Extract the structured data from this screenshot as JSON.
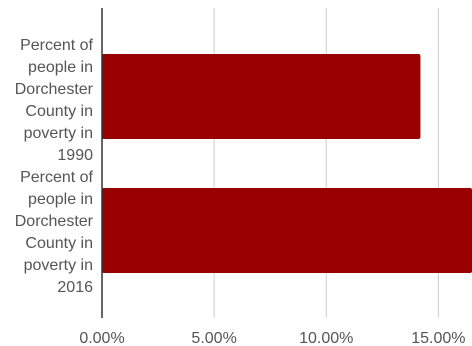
{
  "chart_data": {
    "type": "bar",
    "orientation": "horizontal",
    "categories": [
      "Percent of people in Dorchester County in poverty in 1990",
      "Percent of people in Dorchester County in poverty in 2016"
    ],
    "category_label_lines": [
      [
        "Percent of",
        "people in",
        "Dorchester",
        "County in",
        "poverty in",
        "1990"
      ],
      [
        "Percent of",
        "people in",
        "Dorchester",
        "County in",
        "poverty in",
        "2016"
      ]
    ],
    "values": [
      14.2,
      16.5
    ],
    "xlim": [
      0,
      16.5
    ],
    "x_ticks": [
      0,
      5,
      10,
      15
    ],
    "x_tick_labels": [
      "0.00%",
      "5.00%",
      "10.00%",
      "15.00%"
    ],
    "title": "",
    "xlabel": "",
    "ylabel": "",
    "grid": true,
    "legend": "none",
    "bar_color": "#990000"
  }
}
